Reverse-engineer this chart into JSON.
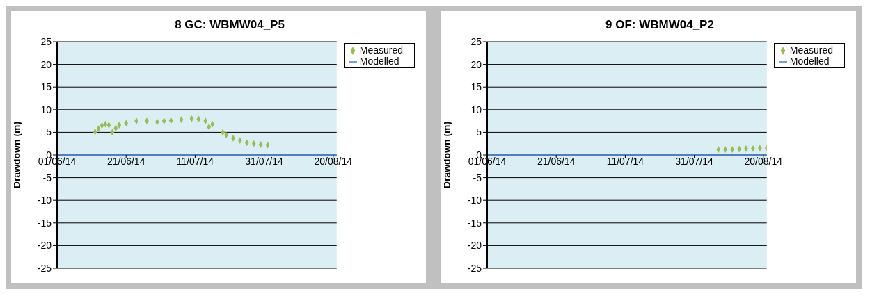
{
  "chart_data": [
    {
      "type": "scatter",
      "title": "8 GC: WBMW04_P5",
      "ylabel": "Drawdown (m)",
      "xlim": [
        "2014-06-01",
        "2014-08-21"
      ],
      "xticks": [
        {
          "value": "2014-06-01",
          "label": "01/06/14"
        },
        {
          "value": "2014-06-21",
          "label": "21/06/14"
        },
        {
          "value": "2014-07-11",
          "label": "11/07/14"
        },
        {
          "value": "2014-07-31",
          "label": "31/07/14"
        },
        {
          "value": "2014-08-20",
          "label": "20/08/14"
        }
      ],
      "ylim": [
        -25,
        25
      ],
      "yticks": [
        -25,
        -20,
        -15,
        -10,
        -5,
        0,
        5,
        10,
        15,
        20,
        25
      ],
      "grid": "y",
      "legend": "top right",
      "series": [
        {
          "name": "Measured",
          "type": "scatter",
          "marker": "diamond",
          "color": "#9bbb59",
          "x": [
            "2014-06-12",
            "2014-06-13",
            "2014-06-14",
            "2014-06-15",
            "2014-06-16",
            "2014-06-17",
            "2014-06-18",
            "2014-06-19",
            "2014-06-21",
            "2014-06-24",
            "2014-06-27",
            "2014-06-30",
            "2014-07-02",
            "2014-07-04",
            "2014-07-07",
            "2014-07-10",
            "2014-07-12",
            "2014-07-14",
            "2014-07-15",
            "2014-07-16",
            "2014-07-19",
            "2014-07-20",
            "2014-07-22",
            "2014-07-24",
            "2014-07-26",
            "2014-07-28",
            "2014-07-30",
            "2014-08-01"
          ],
          "values": [
            5.1,
            5.8,
            6.5,
            6.8,
            6.6,
            5.0,
            5.9,
            6.6,
            7.0,
            7.5,
            7.5,
            7.3,
            7.5,
            7.6,
            7.8,
            8.0,
            7.9,
            7.5,
            6.2,
            6.8,
            5.0,
            4.4,
            3.7,
            3.2,
            2.7,
            2.5,
            2.3,
            2.2
          ]
        },
        {
          "name": "Modelled",
          "type": "line",
          "color": "#4f81bd",
          "x": [
            "2014-06-01",
            "2014-08-21"
          ],
          "values": [
            0,
            0
          ]
        }
      ]
    },
    {
      "type": "scatter",
      "title": "9 OF: WBMW04_P2",
      "ylabel": "Drawdown (m)",
      "xlim": [
        "2014-06-01",
        "2014-08-21"
      ],
      "xticks": [
        {
          "value": "2014-06-01",
          "label": "01/06/14"
        },
        {
          "value": "2014-06-21",
          "label": "21/06/14"
        },
        {
          "value": "2014-07-11",
          "label": "11/07/14"
        },
        {
          "value": "2014-07-31",
          "label": "31/07/14"
        },
        {
          "value": "2014-08-20",
          "label": "20/08/14"
        }
      ],
      "ylim": [
        -25,
        25
      ],
      "yticks": [
        -25,
        -20,
        -15,
        -10,
        -5,
        0,
        5,
        10,
        15,
        20,
        25
      ],
      "grid": "y",
      "legend": "top right",
      "series": [
        {
          "name": "Measured",
          "type": "scatter",
          "marker": "diamond",
          "color": "#9bbb59",
          "x": [
            "2014-08-07",
            "2014-08-09",
            "2014-08-11",
            "2014-08-13",
            "2014-08-15",
            "2014-08-17",
            "2014-08-19",
            "2014-08-21"
          ],
          "values": [
            1.2,
            1.2,
            1.2,
            1.3,
            1.4,
            1.4,
            1.5,
            1.5
          ]
        },
        {
          "name": "Modelled",
          "type": "line",
          "color": "#4f81bd",
          "x": [
            "2014-06-01",
            "2014-08-21"
          ],
          "values": [
            0,
            0
          ]
        }
      ]
    }
  ]
}
